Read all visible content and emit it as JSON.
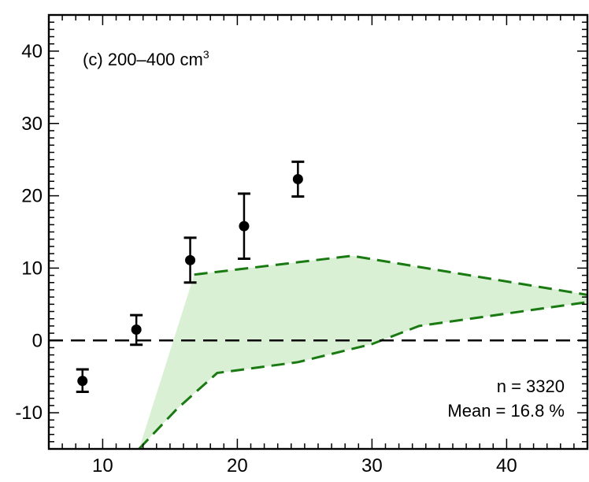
{
  "chart_data": {
    "type": "scatter",
    "title": "",
    "xlabel": "",
    "ylabel": "",
    "xlim": [
      6,
      46
    ],
    "ylim": [
      -15,
      45
    ],
    "grid": false,
    "x_major_ticks": [
      10,
      20,
      30,
      40
    ],
    "y_major_ticks": [
      -10,
      0,
      10,
      20,
      30,
      40
    ],
    "x_minor_step": 1,
    "y_minor_step": 1,
    "annotations": {
      "panel_label_main": "(c) 200–400 cm",
      "panel_label_sup": "3",
      "n_text": "n = 3320",
      "mean_text": "Mean = 16.8 %"
    },
    "points": [
      {
        "x": 8.5,
        "y": -5.6,
        "err_low": -7.1,
        "err_high": -4.0
      },
      {
        "x": 12.5,
        "y": 1.5,
        "err_low": -0.6,
        "err_high": 3.5
      },
      {
        "x": 16.5,
        "y": 11.1,
        "err_low": 8.0,
        "err_high": 14.2
      },
      {
        "x": 20.5,
        "y": 15.8,
        "err_low": 11.3,
        "err_high": 20.3
      },
      {
        "x": 24.5,
        "y": 22.3,
        "err_low": 19.9,
        "err_high": 24.7
      }
    ],
    "zero_line": {
      "y": 0
    },
    "band": {
      "upper": [
        [
          16.8,
          9.1
        ],
        [
          28.5,
          11.7
        ],
        [
          46,
          6.3
        ]
      ],
      "lower": [
        [
          12.7,
          -15
        ],
        [
          15.5,
          -9.5
        ],
        [
          18.5,
          -4.5
        ],
        [
          24.5,
          -3.0
        ],
        [
          30,
          -0.5
        ],
        [
          33.5,
          2.0
        ],
        [
          46,
          5.3
        ]
      ],
      "right_x": 46
    },
    "colors": {
      "band_fill": "#d9f0d5",
      "band_stroke": "#1a7a12",
      "marker": "#000000",
      "zero_line": "#000000"
    }
  }
}
